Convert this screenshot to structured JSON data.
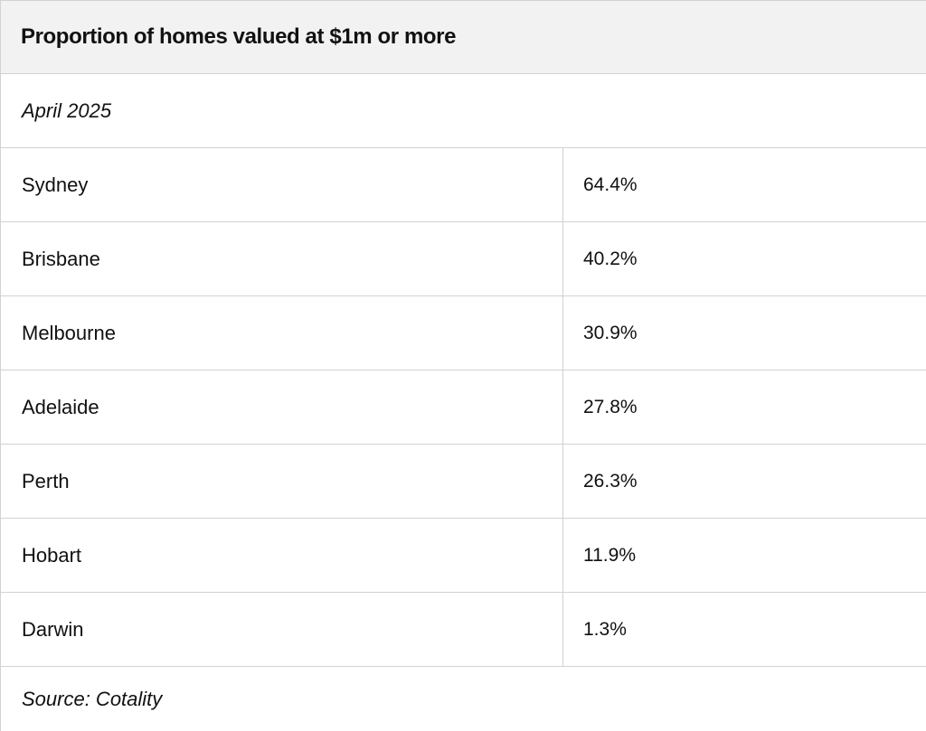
{
  "chart_data": {
    "type": "table",
    "title": "Proportion of homes valued at $1m or more",
    "subtitle": "April 2025",
    "rows": [
      {
        "city": "Sydney",
        "value": "64.4%"
      },
      {
        "city": "Brisbane",
        "value": "40.2%"
      },
      {
        "city": "Melbourne",
        "value": "30.9%"
      },
      {
        "city": "Adelaide",
        "value": "27.8%"
      },
      {
        "city": "Perth",
        "value": "26.3%"
      },
      {
        "city": "Hobart",
        "value": "11.9%"
      },
      {
        "city": "Darwin",
        "value": "1.3%"
      }
    ],
    "source": "Source: Cotality"
  }
}
